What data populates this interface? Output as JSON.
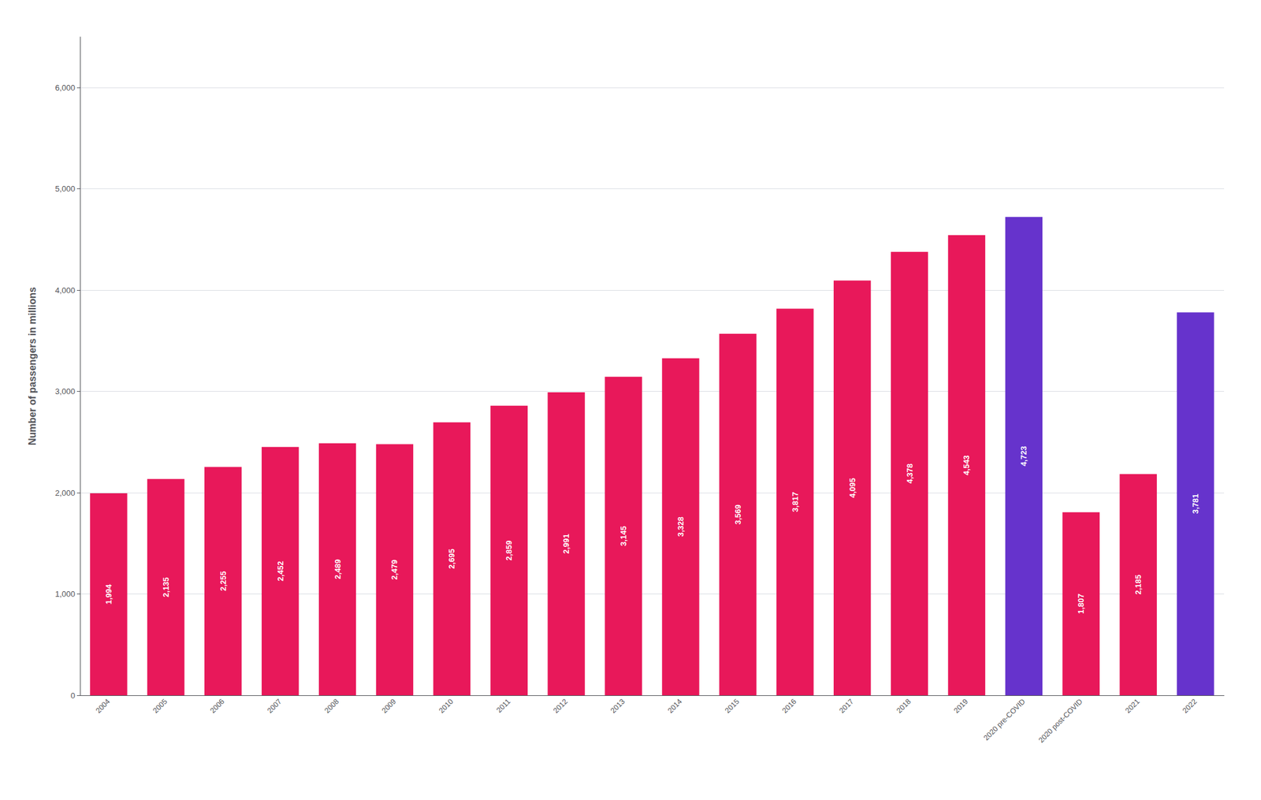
{
  "chart_data": {
    "type": "bar",
    "ylabel": "Number of passengers in millions",
    "categories": [
      "2004",
      "2005",
      "2006",
      "2007",
      "2008",
      "2009",
      "2010",
      "2011",
      "2012",
      "2013",
      "2014",
      "2015",
      "2016",
      "2017",
      "2018",
      "2019",
      "2020 pre-COVID",
      "2020 post-COVID",
      "2021",
      "2022"
    ],
    "values": [
      1994,
      2135,
      2255,
      2452,
      2489,
      2479,
      2695,
      2859,
      2991,
      3145,
      3328,
      3569,
      3817,
      4095,
      4378,
      4543,
      4723,
      1807,
      2185,
      3781
    ],
    "value_labels": [
      "1,994",
      "2,135",
      "2,255",
      "2,452",
      "2,489",
      "2,479",
      "2,695",
      "2,859",
      "2,991",
      "3,145",
      "3,328",
      "3,569",
      "3,817",
      "4,095",
      "4,378",
      "4,543",
      "4,723",
      "1,807",
      "2,185",
      "3,781"
    ],
    "colors": [
      "#e8185a",
      "#e8185a",
      "#e8185a",
      "#e8185a",
      "#e8185a",
      "#e8185a",
      "#e8185a",
      "#e8185a",
      "#e8185a",
      "#e8185a",
      "#e8185a",
      "#e8185a",
      "#e8185a",
      "#e8185a",
      "#e8185a",
      "#e8185a",
      "#6633cc",
      "#e8185a",
      "#e8185a",
      "#6633cc"
    ],
    "ylim": [
      0,
      6500
    ],
    "yticks": [
      0,
      {
        "value": 1000,
        "label": "1,000"
      },
      {
        "value": 2000,
        "label": "2,000"
      },
      {
        "value": 3000,
        "label": "3,000"
      },
      {
        "value": 4000,
        "label": "4,000"
      },
      {
        "value": 5000,
        "label": "5,000"
      },
      {
        "value": 6000,
        "label": "6,000"
      }
    ],
    "grid": true,
    "data_labels": true
  }
}
